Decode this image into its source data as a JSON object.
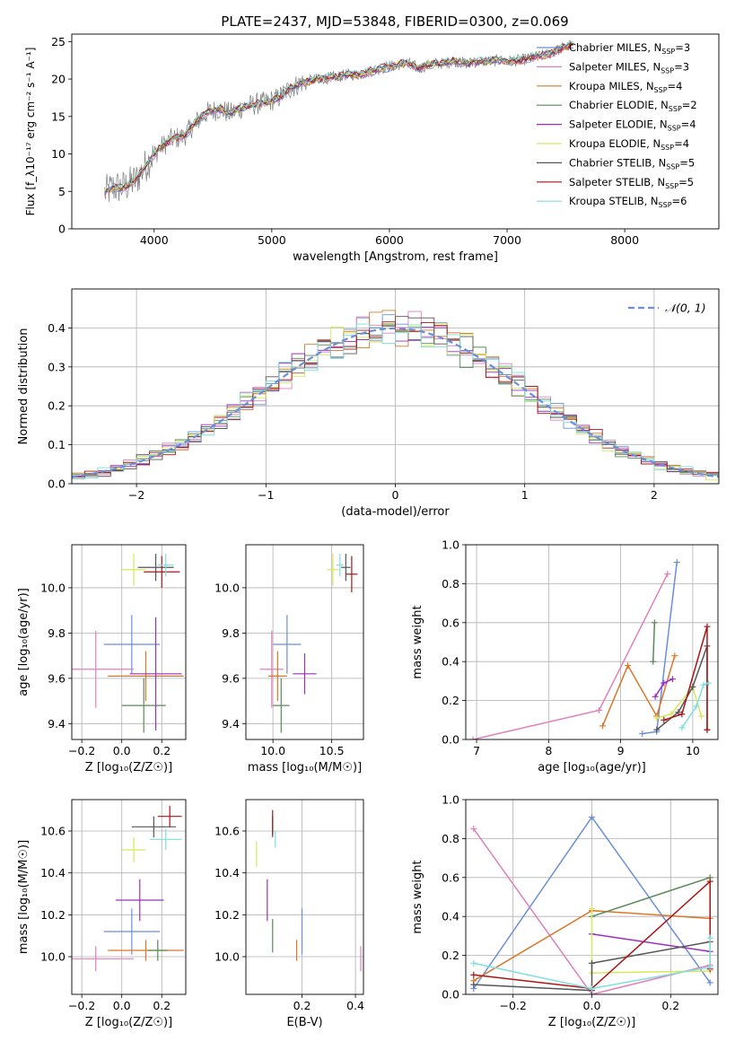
{
  "figure": {
    "title": "PLATE=2437, MJD=53848, FIBERID=0300, z=0.069"
  },
  "series_colors": {
    "Chabrier MILES": "#6a8fd8",
    "Salpeter MILES": "#e07fbf",
    "Kroupa MILES": "#d9782a",
    "Chabrier ELODIE": "#5a8a5a",
    "Salpeter ELODIE": "#9b30c0",
    "Kroupa ELODIE": "#d5e85a",
    "Chabrier STELIB": "#555555",
    "Salpeter STELIB": "#aa1515",
    "Kroupa STELIB": "#7fdede"
  },
  "chart_data": [
    {
      "id": "spectrum",
      "type": "line",
      "title": "PLATE=2437, MJD=53848, FIBERID=0300, z=0.069",
      "xlabel": "wavelength [Angstrom, rest frame]",
      "ylabel": "Flux [f_λ10⁻¹⁷ erg cm⁻² s⁻¹ A⁻¹]",
      "xlim": [
        3300,
        8800
      ],
      "ylim": [
        0,
        26
      ],
      "xticks": [
        4000,
        5000,
        6000,
        7000,
        8000
      ],
      "yticks": [
        0,
        5,
        10,
        15,
        20,
        25
      ],
      "grid": false,
      "legend_position": "lower-right",
      "legend": [
        {
          "name": "Chabrier MILES",
          "nssp": "3",
          "color": "#6a8fd8"
        },
        {
          "name": "Salpeter MILES",
          "nssp": "3",
          "color": "#e07fbf"
        },
        {
          "name": "Kroupa MILES",
          "nssp": "4",
          "color": "#d9782a"
        },
        {
          "name": "Chabrier ELODIE",
          "nssp": "2",
          "color": "#5a8a5a"
        },
        {
          "name": "Salpeter ELODIE",
          "nssp": "4",
          "color": "#9b30c0"
        },
        {
          "name": "Kroupa ELODIE",
          "nssp": "4",
          "color": "#d5e85a"
        },
        {
          "name": "Chabrier STELIB",
          "nssp": "5",
          "color": "#555555"
        },
        {
          "name": "Salpeter STELIB",
          "nssp": "5",
          "color": "#aa1515"
        },
        {
          "name": "Kroupa STELIB",
          "nssp": "6",
          "color": "#7fdede"
        }
      ],
      "data_x": [
        3580,
        3650,
        3750,
        3850,
        3950,
        4050,
        4150,
        4250,
        4350,
        4450,
        4550,
        4650,
        4750,
        4850,
        4950,
        5050,
        5150,
        5250,
        5350,
        5450,
        5550,
        5650,
        5750,
        5850,
        5950,
        6050,
        6150,
        6250,
        6350,
        6450,
        6550,
        6650,
        6750,
        6850,
        6950,
        7050,
        7150,
        7250,
        7350,
        7450,
        7550
      ],
      "data_y": [
        4.8,
        5.5,
        5.6,
        6.6,
        9.0,
        10.8,
        12.0,
        12.3,
        14.2,
        15.5,
        16.0,
        15.4,
        16.2,
        16.6,
        16.9,
        17.4,
        18.7,
        19.5,
        19.9,
        20.1,
        20.3,
        20.6,
        20.6,
        21.1,
        21.5,
        21.8,
        22.2,
        21.4,
        22.0,
        22.1,
        22.4,
        22.1,
        22.3,
        22.4,
        22.5,
        22.4,
        22.6,
        23.0,
        23.3,
        24.0,
        24.6
      ]
    },
    {
      "id": "residuals",
      "type": "line",
      "xlabel": "(data-model)/error",
      "ylabel": "Normed distribution",
      "xlim": [
        -2.5,
        2.5
      ],
      "ylim": [
        0,
        0.5
      ],
      "xticks": [
        -2,
        -1,
        0,
        1,
        2
      ],
      "yticks": [
        0.0,
        0.1,
        0.2,
        0.3,
        0.4
      ],
      "grid": true,
      "legend_position": "upper-right",
      "reference_label": "𝒩(0, 1)",
      "reference_color": "#6a8fd8"
    },
    {
      "id": "age-vs-z",
      "type": "scatter",
      "xlabel": "Z [log₁₀(Z/Z☉)]",
      "ylabel": "age  [log₁₀(age/yr)]",
      "xlim": [
        -0.25,
        0.32
      ],
      "ylim": [
        9.33,
        10.19
      ],
      "xticks": [
        -0.2,
        0.0,
        0.2
      ],
      "yticks": [
        9.4,
        9.6,
        9.8,
        10.0
      ],
      "grid": true,
      "points": [
        {
          "series": "Chabrier MILES",
          "x": 0.05,
          "y": 9.75,
          "xerr": 0.14,
          "yerr": 0.13
        },
        {
          "series": "Salpeter MILES",
          "x": -0.13,
          "y": 9.64,
          "xerr": 0.19,
          "yerr": 0.17
        },
        {
          "series": "Kroupa MILES",
          "x": 0.12,
          "y": 9.61,
          "xerr": 0.19,
          "yerr": 0.11
        },
        {
          "series": "Chabrier ELODIE",
          "x": 0.11,
          "y": 9.48,
          "xerr": 0.11,
          "yerr": 0.12
        },
        {
          "series": "Salpeter ELODIE",
          "x": 0.17,
          "y": 9.62,
          "xerr": 0.13,
          "yerr": 0.25
        },
        {
          "series": "Kroupa ELODIE",
          "x": 0.06,
          "y": 10.08,
          "xerr": 0.06,
          "yerr": 0.07
        },
        {
          "series": "Chabrier STELIB",
          "x": 0.17,
          "y": 10.09,
          "xerr": 0.09,
          "yerr": 0.06
        },
        {
          "series": "Salpeter STELIB",
          "x": 0.2,
          "y": 10.07,
          "xerr": 0.09,
          "yerr": 0.07
        },
        {
          "series": "Kroupa STELIB",
          "x": 0.22,
          "y": 10.1,
          "xerr": 0.04,
          "yerr": 0.05
        }
      ]
    },
    {
      "id": "age-vs-mass",
      "type": "scatter",
      "xlabel": "mass [log₁₀(M/M☉)]",
      "ylabel": "",
      "xlim": [
        9.77,
        10.77
      ],
      "ylim": [
        9.33,
        10.19
      ],
      "xticks": [
        10.0,
        10.5
      ],
      "yticks": [
        9.4,
        9.6,
        9.8,
        10.0
      ],
      "grid": true,
      "points": [
        {
          "series": "Chabrier MILES",
          "x": 10.12,
          "y": 9.75,
          "xerr": 0.12,
          "yerr": 0.13
        },
        {
          "series": "Salpeter MILES",
          "x": 9.99,
          "y": 9.64,
          "xerr": 0.1,
          "yerr": 0.17
        },
        {
          "series": "Kroupa MILES",
          "x": 10.04,
          "y": 9.61,
          "xerr": 0.08,
          "yerr": 0.11
        },
        {
          "series": "Chabrier ELODIE",
          "x": 10.07,
          "y": 9.48,
          "xerr": 0.07,
          "yerr": 0.12
        },
        {
          "series": "Salpeter ELODIE",
          "x": 10.27,
          "y": 9.62,
          "xerr": 0.1,
          "yerr": 0.09
        },
        {
          "series": "Kroupa ELODIE",
          "x": 10.51,
          "y": 10.08,
          "xerr": 0.05,
          "yerr": 0.07
        },
        {
          "series": "Chabrier STELIB",
          "x": 10.62,
          "y": 10.09,
          "xerr": 0.04,
          "yerr": 0.06
        },
        {
          "series": "Salpeter STELIB",
          "x": 10.67,
          "y": 10.06,
          "xerr": 0.05,
          "yerr": 0.08
        },
        {
          "series": "Kroupa STELIB",
          "x": 10.57,
          "y": 10.1,
          "xerr": 0.03,
          "yerr": 0.05
        }
      ]
    },
    {
      "id": "mass-weight-vs-age",
      "type": "line",
      "xlabel": "age  [log₁₀(age/yr)]",
      "ylabel": "mass weight",
      "xlim": [
        6.85,
        10.35
      ],
      "ylim": [
        0,
        1.0
      ],
      "xticks": [
        7,
        8,
        9,
        10
      ],
      "yticks": [
        0.0,
        0.2,
        0.4,
        0.6,
        0.8,
        1.0
      ],
      "grid": true,
      "series": [
        {
          "name": "Chabrier MILES",
          "x": [
            9.3,
            9.5,
            9.78
          ],
          "y": [
            0.03,
            0.04,
            0.91
          ]
        },
        {
          "name": "Salpeter MILES",
          "x": [
            6.95,
            8.7,
            9.65
          ],
          "y": [
            0.0,
            0.15,
            0.85
          ]
        },
        {
          "name": "Kroupa MILES",
          "x": [
            8.75,
            9.1,
            9.5,
            9.75
          ],
          "y": [
            0.07,
            0.38,
            0.12,
            0.43
          ]
        },
        {
          "name": "Chabrier ELODIE",
          "x": [
            9.45,
            9.47
          ],
          "y": [
            0.4,
            0.6
          ]
        },
        {
          "name": "Salpeter ELODIE",
          "x": [
            9.48,
            9.6,
            9.72
          ],
          "y": [
            0.22,
            0.29,
            0.31
          ]
        },
        {
          "name": "Kroupa ELODIE",
          "x": [
            9.5,
            9.7,
            10.0,
            10.12
          ],
          "y": [
            0.11,
            0.13,
            0.27,
            0.12
          ]
        },
        {
          "name": "Chabrier STELIB",
          "x": [
            9.5,
            9.8,
            10.0,
            10.2,
            10.2
          ],
          "y": [
            0.05,
            0.14,
            0.27,
            0.48,
            0.05
          ]
        },
        {
          "name": "Salpeter STELIB",
          "x": [
            9.6,
            9.85,
            10.2,
            10.2
          ],
          "y": [
            0.1,
            0.13,
            0.58,
            0.05
          ]
        },
        {
          "name": "Kroupa STELIB",
          "x": [
            9.85,
            10.05,
            10.15,
            10.22
          ],
          "y": [
            0.06,
            0.17,
            0.28,
            0.29
          ]
        }
      ]
    },
    {
      "id": "mass-vs-z",
      "type": "scatter",
      "xlabel": "Z [log₁₀(Z/Z☉)]",
      "ylabel": "mass [log₁₀(M/M☉)]",
      "xlim": [
        -0.25,
        0.32
      ],
      "ylim": [
        9.82,
        10.75
      ],
      "xticks": [
        -0.2,
        0.0,
        0.2
      ],
      "yticks": [
        10.0,
        10.2,
        10.4,
        10.6
      ],
      "grid": true,
      "points": [
        {
          "series": "Chabrier MILES",
          "x": 0.05,
          "y": 10.12,
          "xerr": 0.14,
          "yerr": 0.11
        },
        {
          "series": "Salpeter MILES",
          "x": -0.13,
          "y": 9.99,
          "xerr": 0.19,
          "yerr": 0.06
        },
        {
          "series": "Kroupa MILES",
          "x": 0.12,
          "y": 10.03,
          "xerr": 0.19,
          "yerr": 0.05
        },
        {
          "series": "Chabrier ELODIE",
          "x": 0.18,
          "y": 10.03,
          "xerr": 0.05,
          "yerr": 0.05
        },
        {
          "series": "Salpeter ELODIE",
          "x": 0.09,
          "y": 10.27,
          "xerr": 0.12,
          "yerr": 0.1
        },
        {
          "series": "Kroupa ELODIE",
          "x": 0.06,
          "y": 10.51,
          "xerr": 0.06,
          "yerr": 0.06
        },
        {
          "series": "Chabrier STELIB",
          "x": 0.16,
          "y": 10.62,
          "xerr": 0.11,
          "yerr": 0.05
        },
        {
          "series": "Salpeter STELIB",
          "x": 0.24,
          "y": 10.67,
          "xerr": 0.06,
          "yerr": 0.05
        },
        {
          "series": "Kroupa STELIB",
          "x": 0.22,
          "y": 10.56,
          "xerr": 0.08,
          "yerr": 0.05
        }
      ]
    },
    {
      "id": "mass-vs-ebv",
      "type": "scatter",
      "xlabel": "E(B-V)",
      "ylabel": "",
      "xlim": [
        -0.01,
        0.43
      ],
      "ylim": [
        9.82,
        10.75
      ],
      "xticks": [
        0.2,
        0.4
      ],
      "yticks": [
        10.0,
        10.2,
        10.4,
        10.6
      ],
      "grid": true,
      "points": [
        {
          "series": "Chabrier MILES",
          "x": 0.2,
          "y": 10.12,
          "xerr": 0.0,
          "yerr": 0.11
        },
        {
          "series": "Salpeter MILES",
          "x": 0.42,
          "y": 9.99,
          "xerr": 0.0,
          "yerr": 0.06
        },
        {
          "series": "Kroupa MILES",
          "x": 0.18,
          "y": 10.03,
          "xerr": 0.0,
          "yerr": 0.05
        },
        {
          "series": "Chabrier ELODIE",
          "x": 0.09,
          "y": 10.1,
          "xerr": 0.0,
          "yerr": 0.08
        },
        {
          "series": "Salpeter ELODIE",
          "x": 0.07,
          "y": 10.27,
          "xerr": 0.0,
          "yerr": 0.1
        },
        {
          "series": "Kroupa ELODIE",
          "x": 0.03,
          "y": 10.49,
          "xerr": 0.0,
          "yerr": 0.06
        },
        {
          "series": "Chabrier STELIB",
          "x": 0.09,
          "y": 10.62,
          "xerr": 0.0,
          "yerr": 0.05
        },
        {
          "series": "Salpeter STELIB",
          "x": 0.09,
          "y": 10.64,
          "xerr": 0.0,
          "yerr": 0.06
        },
        {
          "series": "Kroupa STELIB",
          "x": 0.1,
          "y": 10.56,
          "xerr": 0.0,
          "yerr": 0.04
        }
      ]
    },
    {
      "id": "mass-weight-vs-z",
      "type": "line",
      "xlabel": "Z [log₁₀(Z/Z☉)]",
      "ylabel": "mass weight",
      "xlim": [
        -0.32,
        0.32
      ],
      "ylim": [
        0,
        1.0
      ],
      "xticks": [
        -0.2,
        0.0,
        0.2
      ],
      "yticks": [
        0.0,
        0.2,
        0.4,
        0.6,
        0.8,
        1.0
      ],
      "grid": true,
      "series": [
        {
          "name": "Chabrier MILES",
          "x": [
            -0.3,
            0.0,
            0.3
          ],
          "y": [
            0.03,
            0.91,
            0.06
          ]
        },
        {
          "name": "Salpeter MILES",
          "x": [
            -0.3,
            0.0,
            0.3
          ],
          "y": [
            0.85,
            0.0,
            0.15
          ]
        },
        {
          "name": "Kroupa MILES",
          "x": [
            -0.3,
            0.0,
            0.3
          ],
          "y": [
            0.07,
            0.43,
            0.39
          ]
        },
        {
          "name": "Chabrier ELODIE",
          "x": [
            0.0,
            0.3
          ],
          "y": [
            0.4,
            0.6
          ]
        },
        {
          "name": "Salpeter ELODIE",
          "x": [
            0.0,
            0.3
          ],
          "y": [
            0.31,
            0.22
          ]
        },
        {
          "name": "Kroupa ELODIE",
          "x": [
            0.0,
            0.0,
            0.3,
            0.3
          ],
          "y": [
            0.44,
            0.11,
            0.12,
            0.27
          ]
        },
        {
          "name": "Chabrier STELIB",
          "x": [
            -0.3,
            0.0,
            0.0,
            0.3
          ],
          "y": [
            0.05,
            0.02,
            0.16,
            0.27
          ]
        },
        {
          "name": "Salpeter STELIB",
          "x": [
            -0.3,
            0.0,
            0.3,
            0.3
          ],
          "y": [
            0.1,
            0.03,
            0.58,
            0.13
          ]
        },
        {
          "name": "Kroupa STELIB",
          "x": [
            -0.3,
            0.0,
            0.3,
            0.3
          ],
          "y": [
            0.16,
            0.03,
            0.14,
            0.29
          ]
        }
      ]
    }
  ]
}
